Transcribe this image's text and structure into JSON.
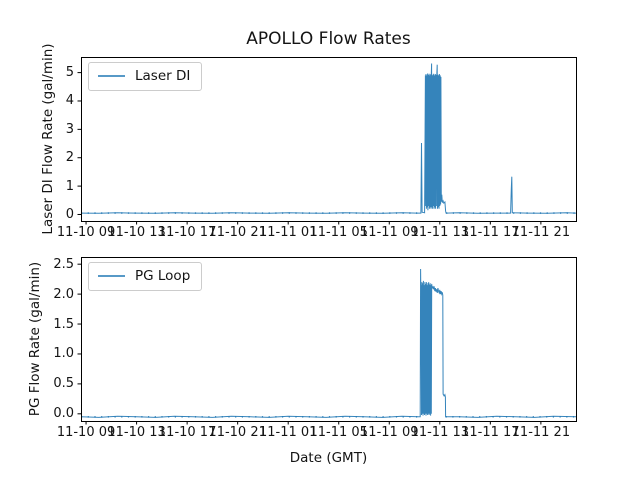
{
  "figure": {
    "title": "APOLLO Flow Rates",
    "xlabel": "Date (GMT)",
    "background": "#ffffff",
    "line_color": "#1f77b4",
    "axis_color": "#000000",
    "text_color": "#141414"
  },
  "chart_data": [
    {
      "type": "line",
      "name": "laser-di",
      "ylabel": "Laser DI Flow Rate (gal/min)",
      "legend_position": "upper left",
      "grid": false,
      "xlim": [
        8.6,
        47.78
      ],
      "ylim": [
        -0.23,
        5.55
      ],
      "y_ticks": [
        0,
        1,
        2,
        3,
        4,
        5
      ],
      "y_tick_labels": [
        "0",
        "1",
        "2",
        "3",
        "4",
        "5"
      ],
      "x_tick_positions": [
        9,
        13,
        17,
        21,
        25,
        29,
        33,
        37,
        41,
        45
      ],
      "x_tick_labels": [
        "11-10 09",
        "11-10 13",
        "11-10 17",
        "11-10 21",
        "11-11 01",
        "11-11 05",
        "11-11 09",
        "11-11 13",
        "11-11 17",
        "11-11 21"
      ],
      "baseline": {
        "value": 0.05,
        "ranges": [
          [
            8.6,
            35.5
          ],
          [
            37.5,
            47.78
          ]
        ]
      },
      "series": [
        {
          "name": "Laser DI",
          "color": "#1f77b4",
          "points": [
            [
              8.6,
              0.05
            ],
            [
              10,
              0.04
            ],
            [
              11.5,
              0.06
            ],
            [
              13,
              0.05
            ],
            [
              14.5,
              0.04
            ],
            [
              16,
              0.06
            ],
            [
              17.5,
              0.05
            ],
            [
              19,
              0.04
            ],
            [
              20.5,
              0.06
            ],
            [
              22,
              0.05
            ],
            [
              23.5,
              0.04
            ],
            [
              25,
              0.06
            ],
            [
              26.5,
              0.05
            ],
            [
              28,
              0.04
            ],
            [
              29.5,
              0.06
            ],
            [
              31,
              0.05
            ],
            [
              32.5,
              0.04
            ],
            [
              34,
              0.06
            ],
            [
              35.2,
              0.05
            ],
            [
              35.5,
              0.05
            ],
            [
              35.55,
              2.52
            ],
            [
              35.6,
              0.08
            ],
            [
              35.8,
              0.06
            ],
            [
              35.86,
              4.9
            ],
            [
              35.88,
              0.3
            ],
            [
              35.91,
              4.95
            ],
            [
              35.94,
              0.2
            ],
            [
              35.97,
              4.9
            ],
            [
              36.0,
              0.25
            ],
            [
              36.03,
              4.97
            ],
            [
              36.06,
              0.15
            ],
            [
              36.09,
              4.92
            ],
            [
              36.12,
              0.3
            ],
            [
              36.15,
              4.96
            ],
            [
              36.18,
              0.2
            ],
            [
              36.21,
              4.9
            ],
            [
              36.24,
              0.25
            ],
            [
              36.27,
              4.94
            ],
            [
              36.3,
              0.2
            ],
            [
              36.33,
              4.95
            ],
            [
              36.35,
              5.32
            ],
            [
              36.37,
              0.25
            ],
            [
              36.4,
              4.9
            ],
            [
              36.43,
              0.2
            ],
            [
              36.46,
              4.93
            ],
            [
              36.49,
              0.3
            ],
            [
              36.52,
              4.96
            ],
            [
              36.55,
              0.2
            ],
            [
              36.58,
              4.9
            ],
            [
              36.61,
              0.25
            ],
            [
              36.64,
              4.95
            ],
            [
              36.67,
              0.2
            ],
            [
              36.7,
              4.92
            ],
            [
              36.73,
              0.3
            ],
            [
              36.76,
              4.9
            ],
            [
              36.79,
              5.28
            ],
            [
              36.82,
              0.2
            ],
            [
              36.85,
              4.93
            ],
            [
              36.88,
              0.25
            ],
            [
              36.91,
              4.9
            ],
            [
              36.94,
              0.2
            ],
            [
              36.97,
              4.95
            ],
            [
              37.0,
              0.3
            ],
            [
              37.03,
              4.9
            ],
            [
              37.06,
              0.35
            ],
            [
              37.09,
              4.85
            ],
            [
              37.12,
              0.45
            ],
            [
              37.16,
              0.7
            ],
            [
              37.2,
              0.42
            ],
            [
              37.26,
              0.48
            ],
            [
              37.32,
              0.4
            ],
            [
              37.4,
              0.44
            ],
            [
              37.46,
              0.12
            ],
            [
              37.5,
              0.05
            ],
            [
              38.5,
              0.06
            ],
            [
              40,
              0.04
            ],
            [
              41.5,
              0.05
            ],
            [
              42.6,
              0.05
            ],
            [
              42.66,
              0.9
            ],
            [
              42.7,
              1.33
            ],
            [
              42.74,
              0.06
            ],
            [
              44,
              0.05
            ],
            [
              45.5,
              0.04
            ],
            [
              47.0,
              0.06
            ],
            [
              47.78,
              0.05
            ]
          ]
        }
      ]
    },
    {
      "type": "line",
      "name": "pg-loop",
      "ylabel": "PG Flow Rate (gal/min)",
      "legend_position": "upper left",
      "grid": false,
      "xlim": [
        8.6,
        47.78
      ],
      "ylim": [
        -0.12,
        2.62
      ],
      "y_ticks": [
        0.0,
        0.5,
        1.0,
        1.5,
        2.0,
        2.5
      ],
      "y_tick_labels": [
        "0.0",
        "0.5",
        "1.0",
        "1.5",
        "2.0",
        "2.5"
      ],
      "x_tick_positions": [
        9,
        13,
        17,
        21,
        25,
        29,
        33,
        37,
        41,
        45
      ],
      "x_tick_labels": [
        "11-10 09",
        "11-10 13",
        "11-10 17",
        "11-10 21",
        "11-11 01",
        "11-11 05",
        "11-11 09",
        "11-11 13",
        "11-11 17",
        "11-11 21"
      ],
      "baseline": {
        "value": -0.05,
        "ranges": [
          [
            8.6,
            35.45
          ],
          [
            37.46,
            47.78
          ]
        ]
      },
      "series": [
        {
          "name": "PG Loop",
          "color": "#1f77b4",
          "points": [
            [
              8.6,
              -0.05
            ],
            [
              10,
              -0.06
            ],
            [
              11.5,
              -0.04
            ],
            [
              13,
              -0.05
            ],
            [
              14.5,
              -0.06
            ],
            [
              16,
              -0.04
            ],
            [
              17.5,
              -0.05
            ],
            [
              19,
              -0.06
            ],
            [
              20.5,
              -0.04
            ],
            [
              22,
              -0.05
            ],
            [
              23.5,
              -0.06
            ],
            [
              25,
              -0.04
            ],
            [
              26.5,
              -0.05
            ],
            [
              28,
              -0.06
            ],
            [
              29.5,
              -0.04
            ],
            [
              31,
              -0.05
            ],
            [
              32.5,
              -0.06
            ],
            [
              34,
              -0.04
            ],
            [
              35.3,
              -0.05
            ],
            [
              35.45,
              -0.05
            ],
            [
              35.48,
              2.42
            ],
            [
              35.5,
              1.9
            ],
            [
              35.52,
              2.15
            ],
            [
              35.55,
              -0.02
            ],
            [
              35.58,
              2.2
            ],
            [
              35.61,
              0.0
            ],
            [
              35.64,
              2.18
            ],
            [
              35.67,
              -0.03
            ],
            [
              35.7,
              2.22
            ],
            [
              35.73,
              0.0
            ],
            [
              35.76,
              2.15
            ],
            [
              35.79,
              -0.02
            ],
            [
              35.82,
              2.2
            ],
            [
              35.85,
              0.0
            ],
            [
              35.88,
              2.17
            ],
            [
              35.91,
              -0.03
            ],
            [
              35.94,
              2.2
            ],
            [
              35.97,
              0.0
            ],
            [
              36.0,
              2.15
            ],
            [
              36.03,
              -0.02
            ],
            [
              36.06,
              2.18
            ],
            [
              36.09,
              0.0
            ],
            [
              36.12,
              2.2
            ],
            [
              36.15,
              -0.02
            ],
            [
              36.18,
              2.16
            ],
            [
              36.21,
              0.0
            ],
            [
              36.24,
              2.18
            ],
            [
              36.27,
              -0.03
            ],
            [
              36.3,
              2.15
            ],
            [
              36.33,
              0.0
            ],
            [
              36.36,
              2.17
            ],
            [
              36.39,
              2.1
            ],
            [
              36.45,
              2.12
            ],
            [
              36.5,
              2.08
            ],
            [
              36.55,
              2.13
            ],
            [
              36.6,
              2.05
            ],
            [
              36.65,
              2.1
            ],
            [
              36.7,
              2.04
            ],
            [
              36.75,
              2.08
            ],
            [
              36.8,
              2.02
            ],
            [
              36.85,
              2.1
            ],
            [
              36.9,
              2.05
            ],
            [
              36.95,
              2.02
            ],
            [
              37.0,
              2.07
            ],
            [
              37.05,
              2.0
            ],
            [
              37.1,
              2.05
            ],
            [
              37.15,
              2.0
            ],
            [
              37.2,
              2.03
            ],
            [
              37.24,
              1.98
            ],
            [
              37.26,
              0.33
            ],
            [
              37.34,
              0.3
            ],
            [
              37.4,
              0.32
            ],
            [
              37.44,
              0.28
            ],
            [
              37.46,
              -0.05
            ],
            [
              38.5,
              -0.05
            ],
            [
              40,
              -0.06
            ],
            [
              41.5,
              -0.04
            ],
            [
              43,
              -0.05
            ],
            [
              44.5,
              -0.06
            ],
            [
              46,
              -0.04
            ],
            [
              47.78,
              -0.05
            ]
          ]
        }
      ]
    }
  ]
}
